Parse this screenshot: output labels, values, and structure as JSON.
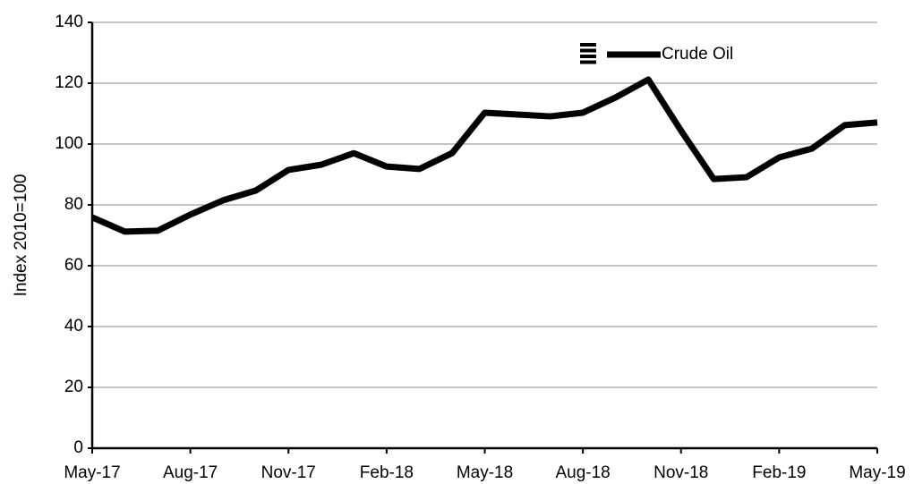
{
  "chart_data": {
    "type": "line",
    "ylabel": "Index 2010=100",
    "categories": [
      "May-17",
      null,
      null,
      "Aug-17",
      null,
      null,
      "Nov-17",
      null,
      null,
      "Feb-18",
      null,
      null,
      "May-18",
      null,
      null,
      "Aug-18",
      null,
      null,
      "Nov-18",
      null,
      null,
      "Feb-19",
      null,
      null,
      "May-19"
    ],
    "series": [
      {
        "name": "Crude Oil",
        "color": "#000000",
        "values": [
          75.9,
          71.2,
          71.5,
          76.8,
          81.5,
          84.7,
          91.5,
          93.2,
          97,
          92.6,
          91.8,
          97,
          110.3,
          109.7,
          109.1,
          110.3,
          115.3,
          121.2,
          104.4,
          88.5,
          89.1,
          95.6,
          98.5,
          106.2,
          107.1
        ]
      }
    ],
    "ylim": [
      0,
      140
    ],
    "yticks": [
      0,
      20,
      40,
      60,
      80,
      100,
      120,
      140
    ],
    "grid": true,
    "legend": "upper right"
  }
}
